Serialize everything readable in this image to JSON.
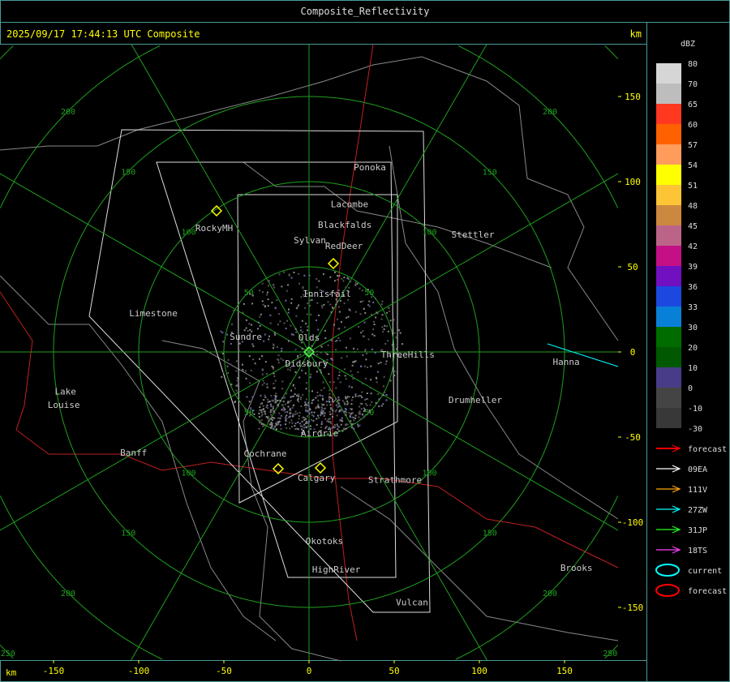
{
  "window": {
    "title": "Composite_Reflectivity"
  },
  "header": {
    "timestamp": "2025/09/17 17:44:13 UTC Composite",
    "unit": "km"
  },
  "axes": {
    "x_unit": "km",
    "y_unit": "km",
    "x_ticks": [
      -150,
      -100,
      -50,
      0,
      50,
      100,
      150
    ],
    "y_ticks": [
      150,
      100,
      50,
      0,
      -50,
      -100,
      -150
    ],
    "range_rings_km": [
      50,
      100,
      150,
      200,
      250
    ],
    "grid_color": "#1fa01f"
  },
  "colorbar": {
    "title": "dBZ",
    "levels": [
      {
        "label": "80",
        "color": "#d6d6d6"
      },
      {
        "label": "70",
        "color": "#bdbdbd"
      },
      {
        "label": "65",
        "color": "#ff3820"
      },
      {
        "label": "60",
        "color": "#ff6000"
      },
      {
        "label": "57",
        "color": "#ff9c5c"
      },
      {
        "label": "54",
        "color": "#ffff00"
      },
      {
        "label": "51",
        "color": "#fdc435"
      },
      {
        "label": "48",
        "color": "#cd8840"
      },
      {
        "label": "45",
        "color": "#bb6488"
      },
      {
        "label": "42",
        "color": "#c41085"
      },
      {
        "label": "39",
        "color": "#7010c0"
      },
      {
        "label": "36",
        "color": "#1c48e0"
      },
      {
        "label": "33",
        "color": "#0880d8"
      },
      {
        "label": "30",
        "color": "#006c00"
      },
      {
        "label": "20",
        "color": "#005800"
      },
      {
        "label": "10",
        "color": "#483c88"
      },
      {
        "label": "0",
        "color": "#444444"
      },
      {
        "label": "-10",
        "color": "#383838"
      },
      {
        "label": "-30",
        "color": ""
      }
    ]
  },
  "legend": [
    {
      "type": "arrow",
      "label": "forecast",
      "color": "#ff0000"
    },
    {
      "type": "arrow",
      "label": "09EA",
      "color": "#ffffff"
    },
    {
      "type": "arrow",
      "label": "111V",
      "color": "#ffa500"
    },
    {
      "type": "arrow",
      "label": "27ZW",
      "color": "#00ffff"
    },
    {
      "type": "arrow",
      "label": "31JP",
      "color": "#20ff20"
    },
    {
      "type": "arrow",
      "label": "18TS",
      "color": "#ff40ff"
    },
    {
      "type": "ellipse",
      "label": "current",
      "color": "#00ffff"
    },
    {
      "type": "ellipse",
      "label": "forecast",
      "color": "#ff0000"
    }
  ],
  "cities": [
    {
      "name": "Ponoka",
      "x": 35.7,
      "y": 108.6
    },
    {
      "name": "Lacombe",
      "x": 23.8,
      "y": 87
    },
    {
      "name": "Blackfalds",
      "x": 21,
      "y": 74.8
    },
    {
      "name": "Sylvan",
      "x": 0.5,
      "y": 65.7
    },
    {
      "name": "RedDeer",
      "x": 20.5,
      "y": 62.4
    },
    {
      "name": "RockyMH",
      "x": -55.7,
      "y": 72.9
    },
    {
      "name": "Stettler",
      "x": 96.2,
      "y": 69
    },
    {
      "name": "Innisfail",
      "x": 10.5,
      "y": 34.3
    },
    {
      "name": "Limestone",
      "x": -91.4,
      "y": 22.9
    },
    {
      "name": "Sundre",
      "x": -37.1,
      "y": 9
    },
    {
      "name": "Olds",
      "x": 0,
      "y": 8.6
    },
    {
      "name": "ThreeHills",
      "x": 58,
      "y": -1.4
    },
    {
      "name": "Hanna",
      "x": 151,
      "y": -5.7
    },
    {
      "name": "Didsbury",
      "x": -1.4,
      "y": -6.7
    },
    {
      "name": "Drumheller",
      "x": 97.6,
      "y": -28
    },
    {
      "name": "Lake",
      "x": -143,
      "y": -23
    },
    {
      "name": "Louise",
      "x": -144,
      "y": -31
    },
    {
      "name": "Airdrie",
      "x": 6.2,
      "y": -47.6
    },
    {
      "name": "Banff",
      "x": -103,
      "y": -59
    },
    {
      "name": "Cochrane",
      "x": -25.7,
      "y": -59.5
    },
    {
      "name": "Calgary",
      "x": 4.3,
      "y": -73.8
    },
    {
      "name": "Strathmore",
      "x": 50.5,
      "y": -75
    },
    {
      "name": "Okotoks",
      "x": 9,
      "y": -111
    },
    {
      "name": "Brooks",
      "x": 157,
      "y": -126.7
    },
    {
      "name": "HighRiver",
      "x": 16,
      "y": -127.6
    },
    {
      "name": "Vulcan",
      "x": 60.5,
      "y": -147
    }
  ]
}
